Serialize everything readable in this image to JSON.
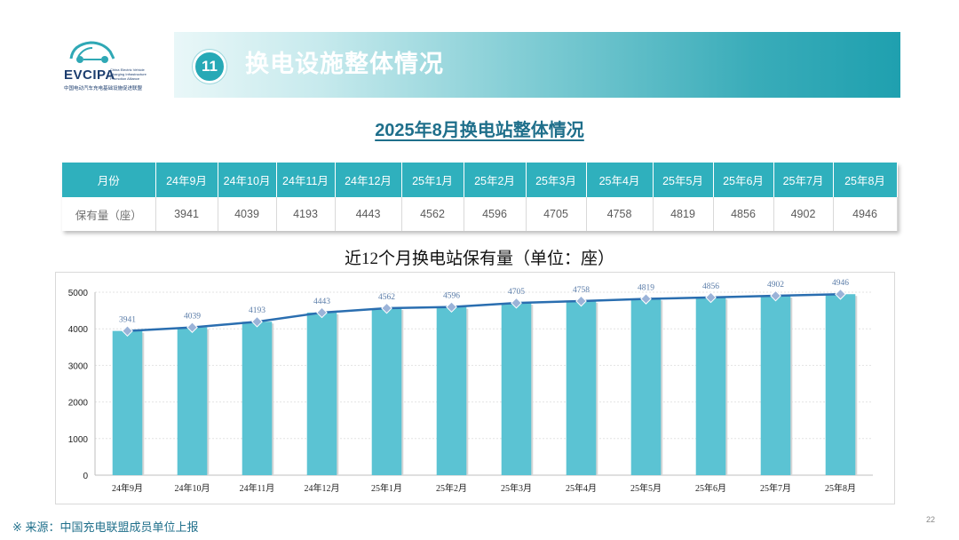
{
  "logo": {
    "text": "EVCIPA",
    "small_text": "China Electric Vehicle Charging Infrastructure Promotion Alliance",
    "cn_text": "中国电动汽车充电基础设施促进联盟"
  },
  "header": {
    "badge": "11",
    "title": "换电设施整体情况"
  },
  "table": {
    "title": "2025年8月换电站整体情况",
    "row_header": "月份",
    "row_label": "保有量（座）",
    "months": [
      "24年9月",
      "24年10月",
      "24年11月",
      "24年12月",
      "25年1月",
      "25年2月",
      "25年3月",
      "25年4月",
      "25年5月",
      "25年6月",
      "25年7月",
      "25年8月"
    ],
    "values": [
      "3941",
      "4039",
      "4193",
      "4443",
      "4562",
      "4596",
      "4705",
      "4758",
      "4819",
      "4856",
      "4902",
      "4946"
    ]
  },
  "chart_data": {
    "type": "bar",
    "title": "近12个月换电站保有量（单位：座）",
    "categories": [
      "24年9月",
      "24年10月",
      "24年11月",
      "24年12月",
      "25年1月",
      "25年2月",
      "25年3月",
      "25年4月",
      "25年5月",
      "25年6月",
      "25年7月",
      "25年8月"
    ],
    "values": [
      3941,
      4039,
      4193,
      4443,
      4562,
      4596,
      4705,
      4758,
      4819,
      4856,
      4902,
      4946
    ],
    "line_overlay": true,
    "ylim": [
      0,
      5000
    ],
    "yticks": [
      0,
      1000,
      2000,
      3000,
      4000,
      5000
    ],
    "grid": true,
    "bar_color": "#5bc3d3",
    "line_color": "#2a6eb0",
    "marker_color": "#9bb3d8",
    "label_color": "#5a7ca8"
  },
  "footer": {
    "source": "※  来源：中国充电联盟成员单位上报",
    "page": "22"
  }
}
